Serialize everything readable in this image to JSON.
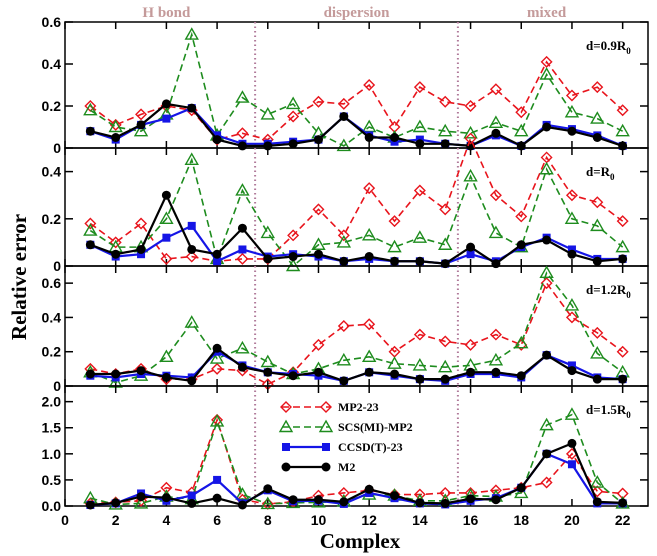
{
  "chart_data": {
    "type": "line",
    "xlabel": "Complex",
    "ylabel": "Relative error",
    "xlim": [
      0,
      23
    ],
    "x_ticks": [
      0,
      2,
      4,
      6,
      8,
      10,
      12,
      14,
      16,
      18,
      20,
      22
    ],
    "x": [
      1,
      2,
      3,
      4,
      5,
      6,
      7,
      8,
      9,
      10,
      11,
      12,
      13,
      14,
      15,
      16,
      17,
      18,
      19,
      20,
      21,
      22
    ],
    "regions": [
      {
        "label": "H bond",
        "x_center": 4
      },
      {
        "label": "dispersion",
        "x_center": 11.5
      },
      {
        "label": "mixed",
        "x_center": 19
      }
    ],
    "region_dividers": [
      7.5,
      15.5
    ],
    "legend": {
      "placement": "bottom panel, center-left",
      "entries": [
        "MP2-23",
        "SCS(MI)-MP2",
        "CCSD(T)-23",
        "M2"
      ]
    },
    "series_styles": [
      {
        "name": "MP2-23",
        "color": "#e8141c",
        "marker": "diamond",
        "dashed": true
      },
      {
        "name": "SCS(MI)-MP2",
        "color": "#1e8c1e",
        "marker": "triangle",
        "dashed": true
      },
      {
        "name": "CCSD(T)-23",
        "color": "#1515e6",
        "marker": "square",
        "dashed": false
      },
      {
        "name": "M2",
        "color": "#000000",
        "marker": "circle",
        "dashed": false
      }
    ],
    "panels": [
      {
        "label_main": "d=0.9R",
        "label_sub": "0",
        "ylim": [
          0,
          0.6
        ],
        "y_ticks": [
          0,
          0.2,
          0.4,
          0.6
        ],
        "y_tick_labels": [
          "0",
          "0.2",
          "0.4",
          "0.6"
        ],
        "series": [
          {
            "name": "MP2-23",
            "values": [
              0.2,
              0.11,
              0.16,
              0.2,
              0.18,
              0.04,
              0.07,
              0.04,
              0.15,
              0.22,
              0.21,
              0.3,
              0.1,
              0.29,
              0.22,
              0.2,
              0.28,
              0.17,
              0.41,
              0.25,
              0.29,
              0.18
            ]
          },
          {
            "name": "SCS(MI)-MP2",
            "values": [
              0.18,
              0.1,
              0.08,
              0.16,
              0.54,
              0.06,
              0.24,
              0.16,
              0.21,
              0.07,
              0.01,
              0.1,
              0.05,
              0.1,
              0.08,
              0.07,
              0.12,
              0.08,
              0.35,
              0.17,
              0.14,
              0.08
            ]
          },
          {
            "name": "CCSD(T)-23",
            "values": [
              0.08,
              0.04,
              0.11,
              0.14,
              0.19,
              0.06,
              0.02,
              0.02,
              0.03,
              0.04,
              0.15,
              0.06,
              0.03,
              0.04,
              0.02,
              0.01,
              0.06,
              0.01,
              0.11,
              0.09,
              0.06,
              0.01
            ]
          },
          {
            "name": "M2",
            "values": [
              0.08,
              0.05,
              0.11,
              0.21,
              0.19,
              0.04,
              0.01,
              0.01,
              0.02,
              0.04,
              0.15,
              0.05,
              0.05,
              0.02,
              0.02,
              0.01,
              0.07,
              0.01,
              0.1,
              0.08,
              0.05,
              0.01
            ]
          }
        ]
      },
      {
        "label_main": "d=R",
        "label_sub": "0",
        "ylim": [
          0,
          0.5
        ],
        "y_ticks": [
          0,
          0.2,
          0.4
        ],
        "y_tick_labels": [
          "0",
          "0.2",
          "0.4"
        ],
        "series": [
          {
            "name": "MP2-23",
            "values": [
              0.18,
              0.1,
              0.18,
              0.03,
              0.04,
              0.02,
              0.03,
              0.03,
              0.13,
              0.24,
              0.13,
              0.33,
              0.19,
              0.32,
              0.24,
              0.54,
              0.3,
              0.21,
              0.46,
              0.3,
              0.27,
              0.19
            ]
          },
          {
            "name": "SCS(MI)-MP2",
            "values": [
              0.15,
              0.08,
              0.08,
              0.2,
              0.45,
              0.03,
              0.32,
              0.14,
              0.0,
              0.09,
              0.1,
              0.13,
              0.08,
              0.12,
              0.09,
              0.38,
              0.14,
              0.08,
              0.41,
              0.2,
              0.17,
              0.08
            ]
          },
          {
            "name": "CCSD(T)-23",
            "values": [
              0.09,
              0.04,
              0.05,
              0.12,
              0.17,
              0.02,
              0.07,
              0.04,
              0.05,
              0.04,
              0.02,
              0.03,
              0.02,
              0.02,
              0.01,
              0.05,
              0.02,
              0.08,
              0.12,
              0.07,
              0.03,
              0.03
            ]
          },
          {
            "name": "M2",
            "values": [
              0.09,
              0.05,
              0.07,
              0.3,
              0.07,
              0.05,
              0.16,
              0.03,
              0.04,
              0.05,
              0.02,
              0.04,
              0.02,
              0.02,
              0.01,
              0.08,
              0.01,
              0.09,
              0.11,
              0.05,
              0.02,
              0.03
            ]
          }
        ]
      },
      {
        "label_main": "d=1.2R",
        "label_sub": "0",
        "ylim": [
          0,
          0.7
        ],
        "y_ticks": [
          0,
          0.2,
          0.4,
          0.6
        ],
        "y_tick_labels": [
          "0",
          "0.2",
          "0.4",
          "0.6"
        ],
        "series": [
          {
            "name": "MP2-23",
            "values": [
              0.1,
              0.07,
              0.1,
              0.04,
              0.04,
              0.1,
              0.09,
              0.01,
              0.08,
              0.24,
              0.35,
              0.36,
              0.2,
              0.3,
              0.26,
              0.24,
              0.3,
              0.24,
              0.6,
              0.4,
              0.31,
              0.2
            ]
          },
          {
            "name": "SCS(MI)-MP2",
            "values": [
              0.08,
              0.02,
              0.06,
              0.17,
              0.37,
              0.16,
              0.22,
              0.14,
              0.07,
              0.1,
              0.15,
              0.17,
              0.13,
              0.12,
              0.11,
              0.12,
              0.15,
              0.25,
              0.66,
              0.47,
              0.19,
              0.08
            ]
          },
          {
            "name": "CCSD(T)-23",
            "values": [
              0.06,
              0.05,
              0.07,
              0.06,
              0.05,
              0.2,
              0.12,
              0.08,
              0.07,
              0.06,
              0.03,
              0.08,
              0.06,
              0.04,
              0.03,
              0.07,
              0.07,
              0.05,
              0.18,
              0.12,
              0.05,
              0.04
            ]
          },
          {
            "name": "M2",
            "values": [
              0.07,
              0.07,
              0.09,
              0.05,
              0.03,
              0.22,
              0.11,
              0.08,
              0.06,
              0.08,
              0.03,
              0.08,
              0.07,
              0.04,
              0.04,
              0.08,
              0.08,
              0.06,
              0.18,
              0.09,
              0.04,
              0.04
            ]
          }
        ]
      },
      {
        "label_main": "d=1.5R",
        "label_sub": "0",
        "ylim": [
          0,
          2.3
        ],
        "y_ticks": [
          0,
          0.5,
          1.0,
          1.5,
          2.0
        ],
        "y_tick_labels": [
          "0.0",
          "0.5",
          "1.0",
          "1.5",
          "2.0"
        ],
        "series": [
          {
            "name": "MP2-23",
            "values": [
              0.05,
              0.07,
              0.1,
              0.35,
              0.26,
              1.65,
              0.12,
              0.04,
              0.08,
              0.2,
              0.25,
              0.3,
              0.22,
              0.22,
              0.25,
              0.25,
              0.3,
              0.35,
              0.45,
              1.0,
              0.28,
              0.24
            ]
          },
          {
            "name": "SCS(MI)-MP2",
            "values": [
              0.15,
              0.03,
              0.05,
              0.18,
              0.13,
              1.62,
              0.22,
              0.04,
              0.06,
              0.07,
              0.09,
              0.22,
              0.2,
              0.1,
              0.1,
              0.2,
              0.18,
              0.25,
              1.55,
              1.75,
              0.45,
              0.05
            ]
          },
          {
            "name": "CCSD(T)-23",
            "values": [
              0.02,
              0.05,
              0.24,
              0.1,
              0.2,
              0.5,
              0.05,
              0.3,
              0.09,
              0.1,
              0.04,
              0.25,
              0.15,
              0.05,
              0.03,
              0.1,
              0.15,
              0.35,
              1.0,
              0.8,
              0.05,
              0.05
            ]
          },
          {
            "name": "M2",
            "values": [
              0.02,
              0.06,
              0.18,
              0.16,
              0.05,
              0.15,
              0.02,
              0.33,
              0.12,
              0.12,
              0.08,
              0.32,
              0.2,
              0.06,
              0.05,
              0.14,
              0.12,
              0.35,
              1.0,
              1.2,
              0.08,
              0.06
            ]
          }
        ]
      }
    ]
  }
}
